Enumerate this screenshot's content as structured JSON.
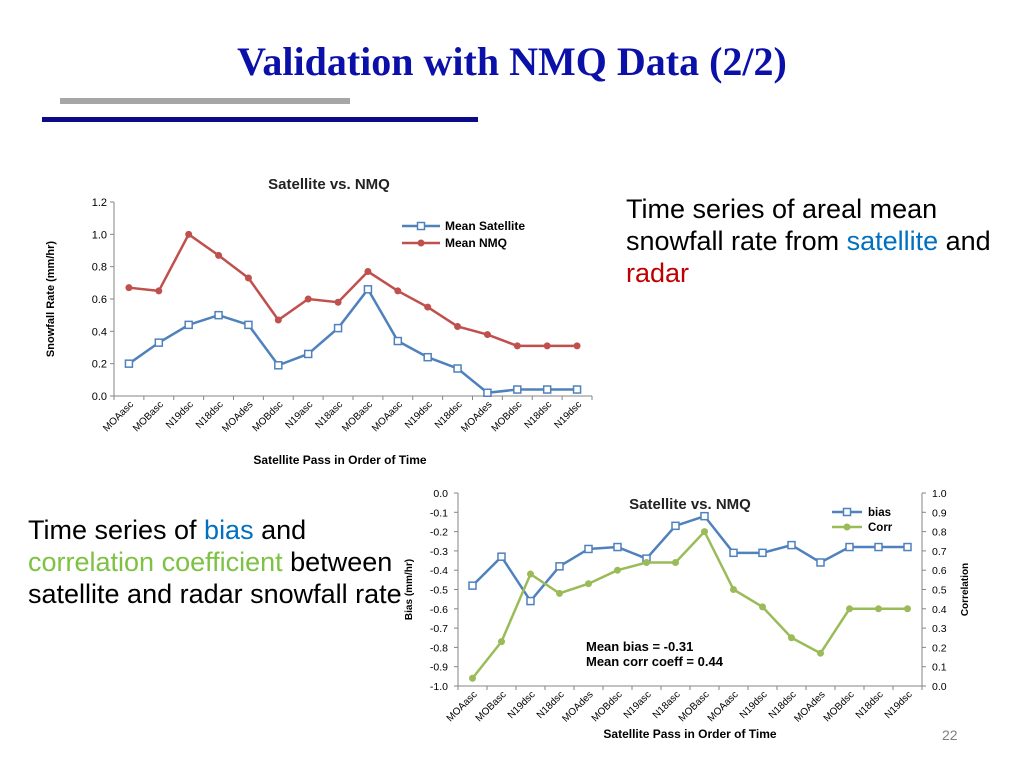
{
  "slide": {
    "title": "Validation with NMQ Data (2/2)",
    "page_number": "22"
  },
  "notes": {
    "top": {
      "t1": "Time series of areal mean snowfall rate from ",
      "h1": "satellite",
      "t2": " and ",
      "h2": "radar",
      "colors": {
        "h1": "#0070c0",
        "h2": "#c00000"
      }
    },
    "bottom": {
      "t1": "Time series of ",
      "h1": "bias",
      "t2": " and ",
      "h2": "correlation coefficient",
      "t3": " between satellite and radar snowfall rate",
      "colors": {
        "h1": "#0070c0",
        "h2": "#7dc242"
      }
    }
  },
  "chart_data": [
    {
      "type": "line",
      "title": "Satellite vs. NMQ",
      "xlabel": "Satellite Pass in Order of Time",
      "ylabel": "Snowfall Rate (mm/hr)",
      "categories": [
        "MOAasc",
        "MOBasc",
        "N19dsc",
        "N18dsc",
        "MOAdes",
        "MOBdsc",
        "N19asc",
        "N18asc",
        "MOBasc",
        "MOAasc",
        "N19dsc",
        "N18dsc",
        "MOAdes",
        "MOBdsc",
        "N18dsc",
        "N19dsc"
      ],
      "ylim": [
        0,
        1.2
      ],
      "yticks": [
        "0.0",
        "0.2",
        "0.4",
        "0.6",
        "0.8",
        "1.0",
        "1.2"
      ],
      "grid": false,
      "legend": "top-right",
      "series": [
        {
          "name": "Mean Satellite",
          "color": "#4f81bd",
          "marker": "square",
          "values": [
            0.2,
            0.33,
            0.44,
            0.5,
            0.44,
            0.19,
            0.26,
            0.42,
            0.66,
            0.34,
            0.24,
            0.17,
            0.02,
            0.04,
            0.04,
            0.04
          ]
        },
        {
          "name": "Mean NMQ",
          "color": "#c0504d",
          "marker": "circle",
          "values": [
            0.67,
            0.65,
            1.0,
            0.87,
            0.73,
            0.47,
            0.6,
            0.58,
            0.77,
            0.65,
            0.55,
            0.43,
            0.38,
            0.31,
            0.31,
            0.31
          ]
        }
      ]
    },
    {
      "type": "line",
      "title": "Satellite vs. NMQ",
      "xlabel": "Satellite Pass in Order of Time",
      "ylabel": "Bias (mm/hr)",
      "ylabel_right": "Correlation",
      "categories": [
        "MOAasc",
        "MOBasc",
        "N19dsc",
        "N18dsc",
        "MOAdes",
        "MOBdsc",
        "N19asc",
        "N18asc",
        "MOBasc",
        "MOAasc",
        "N19dsc",
        "N18dsc",
        "MOAdes",
        "MOBdsc",
        "N18dsc",
        "N19dsc"
      ],
      "ylim": [
        -1.0,
        0.0
      ],
      "ylim_right": [
        0.0,
        1.0
      ],
      "yticks": [
        "-1.0",
        "-0.9",
        "-0.8",
        "-0.7",
        "-0.6",
        "-0.5",
        "-0.4",
        "-0.3",
        "-0.2",
        "-0.1",
        "0.0"
      ],
      "yticks_right": [
        "0.0",
        "0.1",
        "0.2",
        "0.3",
        "0.4",
        "0.5",
        "0.6",
        "0.7",
        "0.8",
        "0.9",
        "1.0"
      ],
      "grid": false,
      "legend": "top-right",
      "annotations": [
        "Mean bias = -0.31",
        "Mean corr coeff = 0.44"
      ],
      "series": [
        {
          "name": "bias",
          "axis": "left",
          "color": "#4f81bd",
          "marker": "square",
          "values": [
            -0.48,
            -0.33,
            -0.56,
            -0.38,
            -0.29,
            -0.28,
            -0.34,
            -0.17,
            -0.12,
            -0.31,
            -0.31,
            -0.27,
            -0.36,
            -0.28,
            -0.28,
            -0.28
          ]
        },
        {
          "name": "Corr",
          "axis": "right",
          "color": "#9bbb59",
          "marker": "circle",
          "values": [
            0.04,
            0.23,
            0.58,
            0.48,
            0.53,
            0.6,
            0.64,
            0.64,
            0.8,
            0.5,
            0.41,
            0.25,
            0.17,
            0.4,
            0.4,
            0.4
          ]
        }
      ]
    }
  ]
}
